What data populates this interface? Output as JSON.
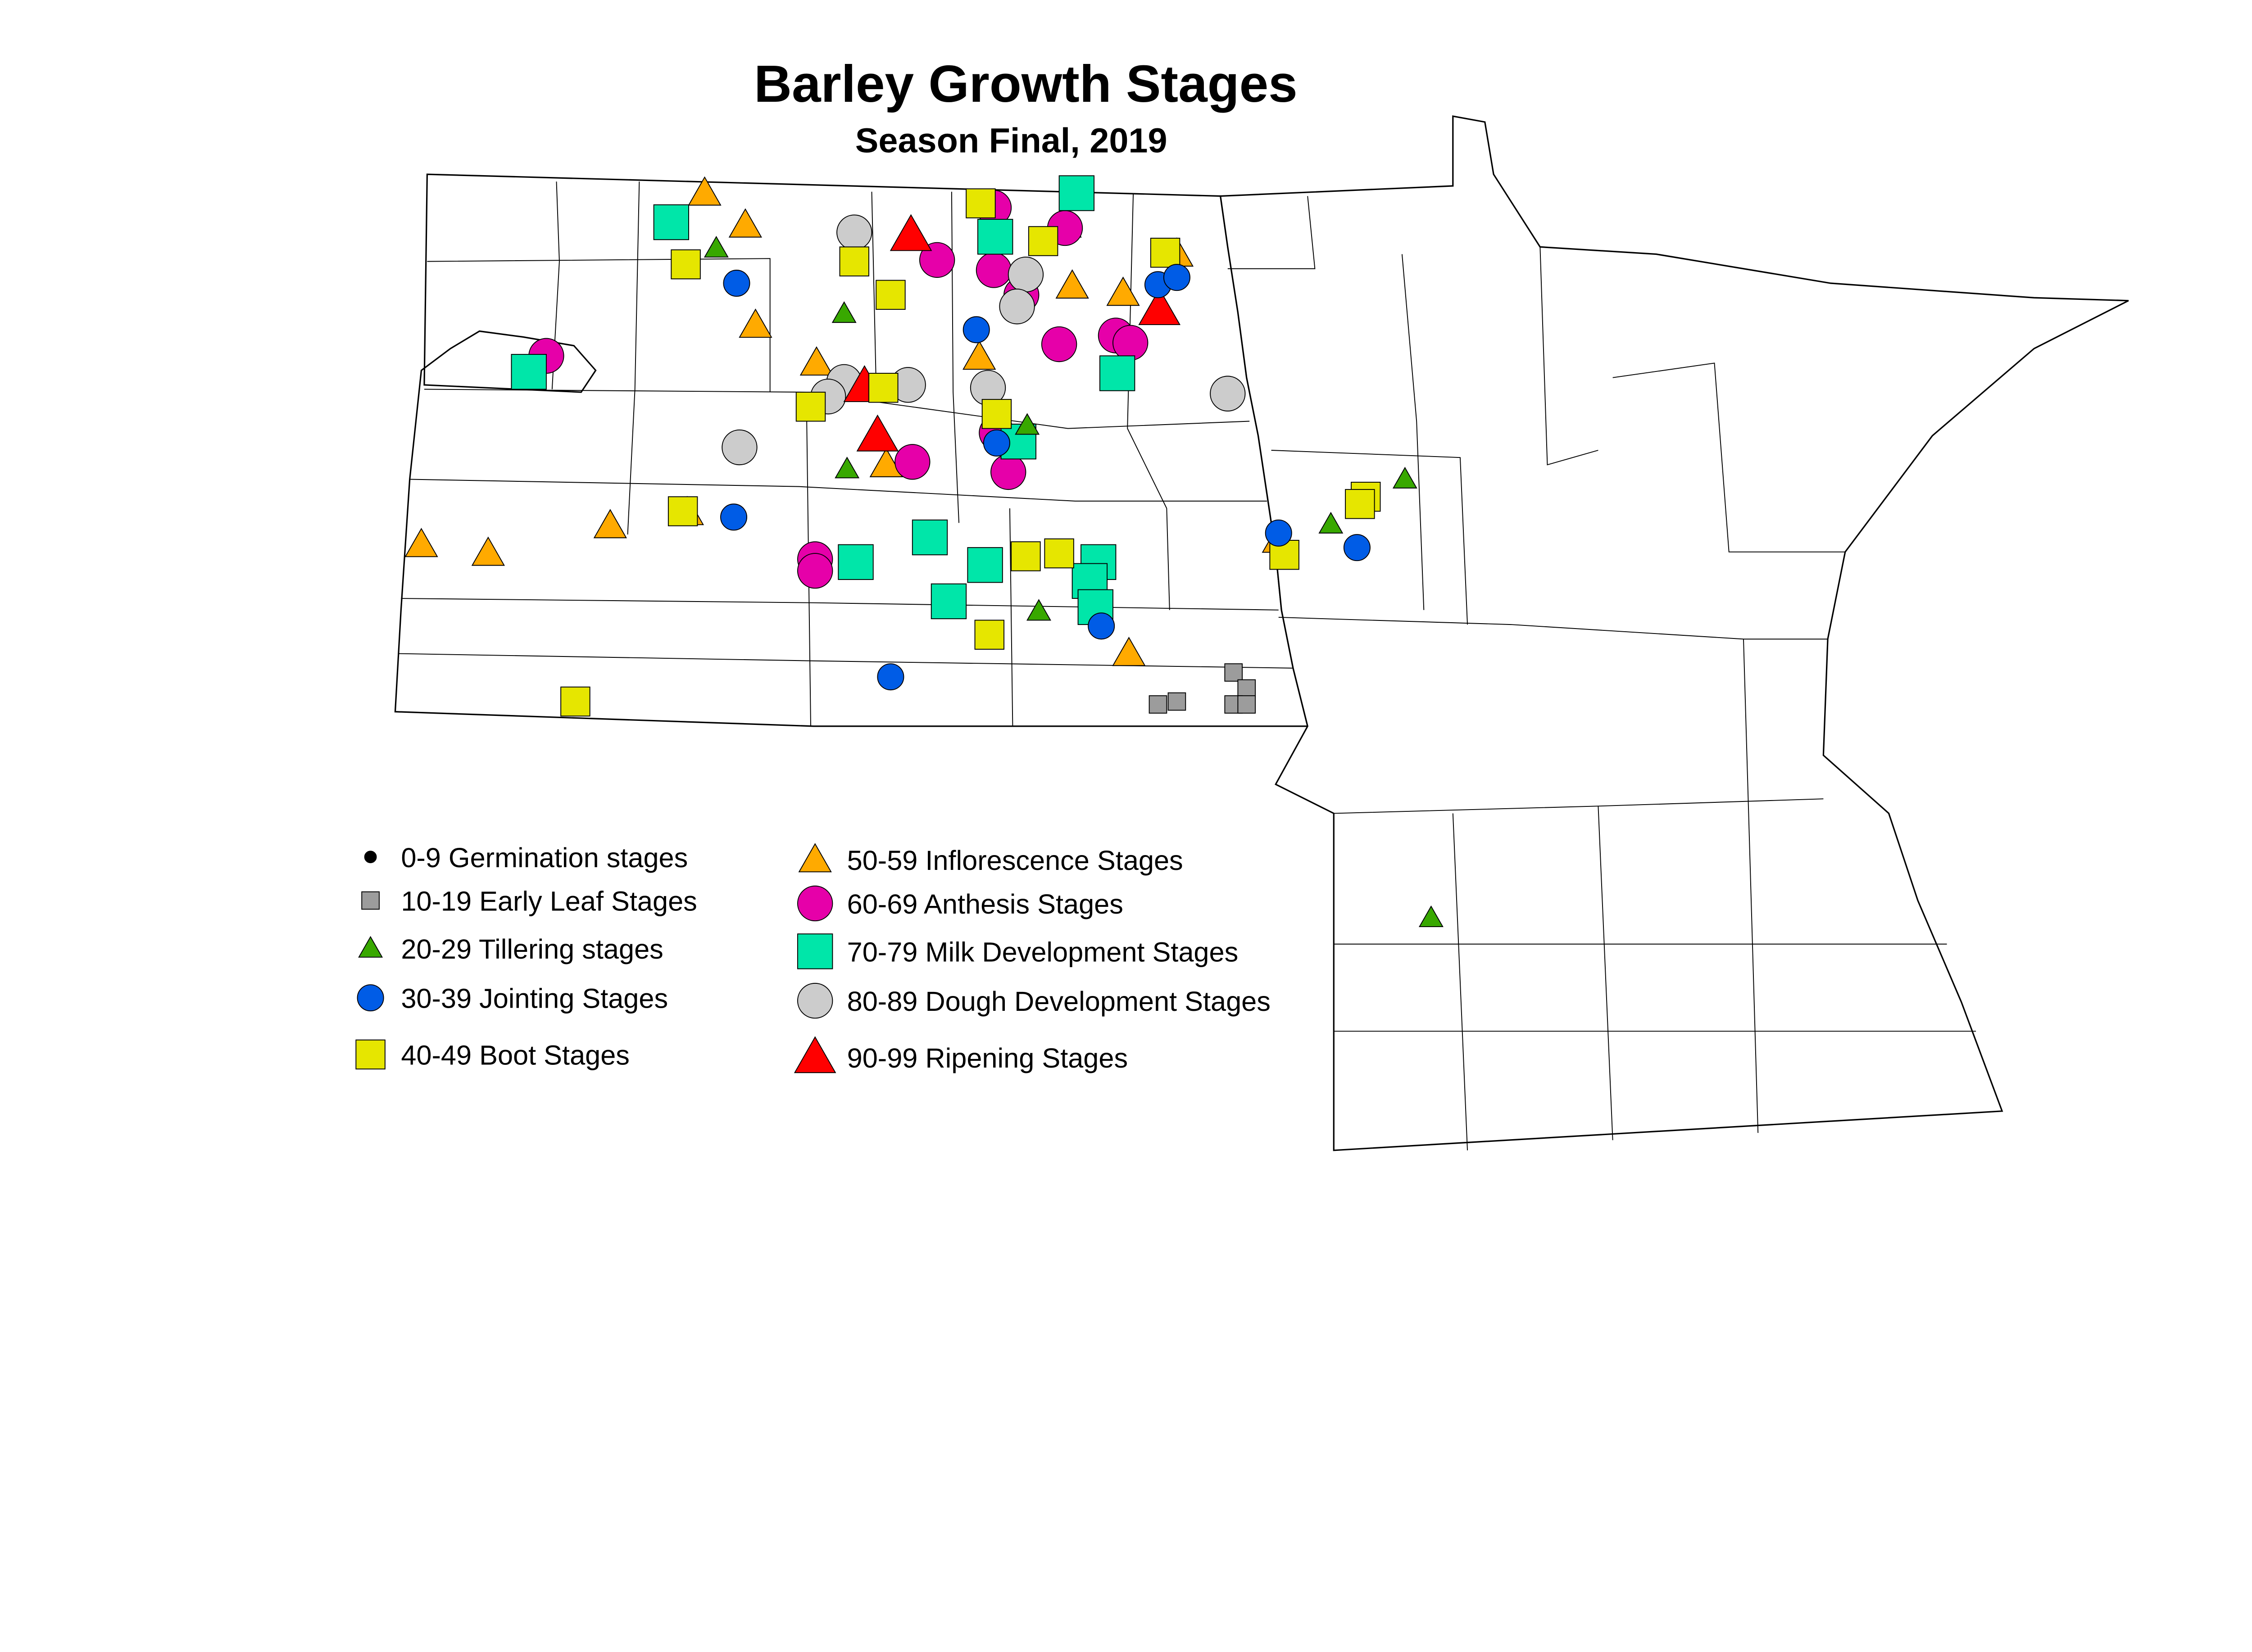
{
  "title": "Barley Growth Stages",
  "subtitle": "Season Final, 2019",
  "legend": [
    {
      "label": "0-9 Germination stages",
      "shape": "dot",
      "color": "#000000"
    },
    {
      "label": "10-19 Early Leaf Stages",
      "shape": "square-small",
      "color": "#9C9C9C"
    },
    {
      "label": "20-29 Tillering stages",
      "shape": "triangle-small",
      "color": "#38A800"
    },
    {
      "label": "30-39 Jointing Stages",
      "shape": "circle",
      "color": "#005CE6"
    },
    {
      "label": "40-49 Boot Stages",
      "shape": "square",
      "color": "#E6E600"
    },
    {
      "label": "50-59 Inflorescence Stages",
      "shape": "triangle",
      "color": "#FFAA00"
    },
    {
      "label": "60-69 Anthesis Stages",
      "shape": "circle-large",
      "color": "#E600A9"
    },
    {
      "label": "70-79 Milk Development Stages",
      "shape": "square-large",
      "color": "#00E6A9"
    },
    {
      "label": "80-89 Dough Development Stages",
      "shape": "circle-large",
      "color": "#CCCCCC"
    },
    {
      "label": "90-99 Ripening Stages",
      "shape": "triangle-large",
      "color": "#FF0000"
    }
  ]
}
